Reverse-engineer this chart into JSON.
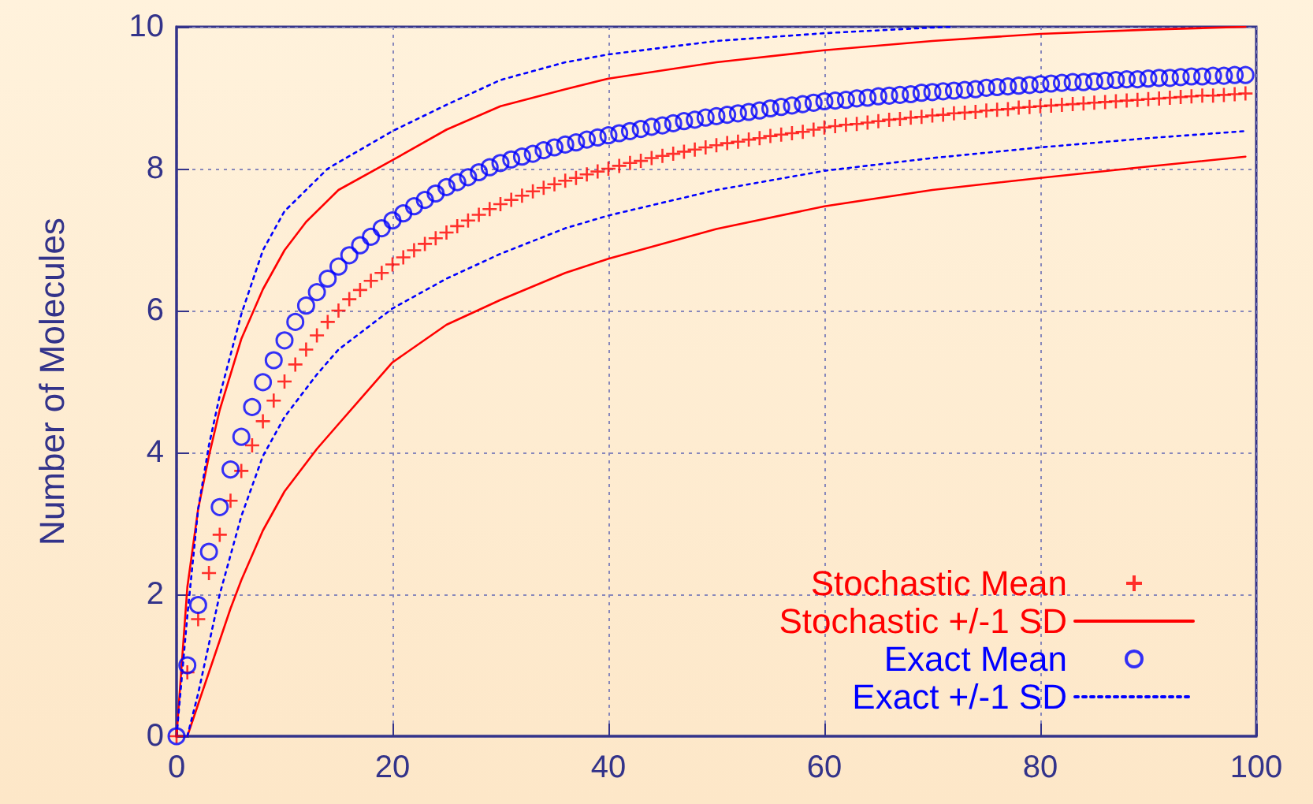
{
  "chart_data": {
    "type": "scatter",
    "ylabel": "Number of Molecules",
    "xlim": [
      0,
      100
    ],
    "xticks": [
      0,
      20,
      40,
      60,
      80,
      100
    ],
    "ylim": [
      0,
      10
    ],
    "yticks": [
      0,
      2,
      4,
      6,
      8,
      10
    ],
    "grid": true,
    "legend": "bottom right",
    "x": [
      0,
      1,
      2,
      3,
      4,
      5,
      6,
      7,
      8,
      9,
      10,
      11,
      12,
      13,
      14,
      15,
      16,
      17,
      18,
      19,
      20,
      21,
      22,
      23,
      24,
      25,
      26,
      27,
      28,
      29,
      30,
      31,
      32,
      33,
      34,
      35,
      36,
      37,
      38,
      39,
      40,
      41,
      42,
      43,
      44,
      45,
      46,
      47,
      48,
      49,
      50,
      51,
      52,
      53,
      54,
      55,
      56,
      57,
      58,
      59,
      60,
      61,
      62,
      63,
      64,
      65,
      66,
      67,
      68,
      69,
      70,
      71,
      72,
      73,
      74,
      75,
      76,
      77,
      78,
      79,
      80,
      81,
      82,
      83,
      84,
      85,
      86,
      87,
      88,
      89,
      90,
      91,
      92,
      93,
      94,
      95,
      96,
      97,
      98,
      99
    ],
    "series": [
      {
        "name": "Stochastic Mean",
        "marker": "cross",
        "color": "#ff0000",
        "values": [
          0,
          0.9,
          1.65,
          2.3,
          2.84,
          3.32,
          3.74,
          4.1,
          4.44,
          4.73,
          5.0,
          5.24,
          5.45,
          5.65,
          5.84,
          6.0,
          6.16,
          6.29,
          6.42,
          6.53,
          6.65,
          6.75,
          6.85,
          6.94,
          7.02,
          7.1,
          7.19,
          7.27,
          7.35,
          7.43,
          7.5,
          7.56,
          7.62,
          7.68,
          7.73,
          7.78,
          7.83,
          7.87,
          7.92,
          7.96,
          8.0,
          8.04,
          8.08,
          8.11,
          8.15,
          8.18,
          8.21,
          8.24,
          8.27,
          8.3,
          8.33,
          8.36,
          8.38,
          8.41,
          8.43,
          8.46,
          8.48,
          8.5,
          8.52,
          8.55,
          8.58,
          8.6,
          8.62,
          8.63,
          8.65,
          8.67,
          8.69,
          8.7,
          8.72,
          8.73,
          8.75,
          8.76,
          8.78,
          8.79,
          8.8,
          8.82,
          8.83,
          8.84,
          8.86,
          8.87,
          8.88,
          8.89,
          8.9,
          8.91,
          8.92,
          8.93,
          8.94,
          8.95,
          8.96,
          8.97,
          8.98,
          8.99,
          9.0,
          9.01,
          9.02,
          9.03,
          9.03,
          9.04,
          9.05,
          9.06
        ]
      },
      {
        "name": "Stochastic +/-1 SD",
        "type": "line",
        "line_style": "solid",
        "color": "#ff0000",
        "x": [
          0,
          1,
          2,
          3,
          4,
          6,
          8,
          10,
          12,
          15,
          20,
          25,
          30,
          36,
          40,
          50,
          60,
          70,
          80,
          90,
          99
        ],
        "values": [
          0,
          2.1,
          3.2,
          3.95,
          4.6,
          5.6,
          6.3,
          6.85,
          7.25,
          7.7,
          8.12,
          8.55,
          8.88,
          9.12,
          9.27,
          9.5,
          9.67,
          9.8,
          9.9,
          9.96,
          10.0
        ]
      },
      {
        "type": "line",
        "line_style": "solid",
        "color": "#ff0000",
        "x": [
          1,
          2,
          3,
          4,
          5,
          6,
          8,
          10,
          13,
          15,
          20,
          25,
          30,
          36,
          40,
          50,
          60,
          70,
          80,
          90,
          99
        ],
        "values": [
          0,
          0.45,
          0.9,
          1.35,
          1.8,
          2.2,
          2.9,
          3.45,
          4.05,
          4.4,
          5.27,
          5.8,
          6.15,
          6.53,
          6.73,
          7.15,
          7.47,
          7.7,
          7.87,
          8.03,
          8.17
        ]
      },
      {
        "name": "Exact Mean",
        "marker": "circle",
        "color": "#0000ff",
        "values": [
          0,
          1.0,
          1.85,
          2.6,
          3.23,
          3.76,
          4.22,
          4.64,
          4.99,
          5.3,
          5.58,
          5.84,
          6.07,
          6.26,
          6.45,
          6.62,
          6.78,
          6.92,
          7.04,
          7.16,
          7.27,
          7.37,
          7.47,
          7.56,
          7.65,
          7.74,
          7.81,
          7.88,
          7.95,
          8.02,
          8.08,
          8.13,
          8.17,
          8.21,
          8.26,
          8.3,
          8.34,
          8.37,
          8.41,
          8.44,
          8.47,
          8.5,
          8.53,
          8.56,
          8.59,
          8.61,
          8.64,
          8.67,
          8.69,
          8.72,
          8.74,
          8.76,
          8.78,
          8.8,
          8.82,
          8.85,
          8.87,
          8.89,
          8.91,
          8.93,
          8.95,
          8.96,
          8.97,
          8.99,
          9.0,
          9.02,
          9.03,
          9.04,
          9.05,
          9.07,
          9.08,
          9.09,
          9.1,
          9.11,
          9.12,
          9.14,
          9.15,
          9.16,
          9.17,
          9.18,
          9.19,
          9.2,
          9.21,
          9.22,
          9.22,
          9.23,
          9.24,
          9.25,
          9.26,
          9.26,
          9.27,
          9.28,
          9.28,
          9.29,
          9.3,
          9.3,
          9.31,
          9.31,
          9.32,
          9.32
        ]
      },
      {
        "name": "Exact +/-1 SD",
        "type": "line",
        "line_style": "dotted",
        "color": "#0000ff",
        "x": [
          0,
          1,
          2,
          3,
          4,
          6,
          8,
          10,
          14,
          20,
          25,
          30,
          36,
          40,
          50,
          60,
          70,
          72
        ],
        "values": [
          0,
          1.7,
          3.2,
          4.1,
          4.8,
          5.95,
          6.85,
          7.4,
          8.0,
          8.53,
          8.9,
          9.25,
          9.5,
          9.61,
          9.8,
          9.91,
          9.99,
          10.0
        ]
      },
      {
        "type": "line",
        "line_style": "dotted",
        "color": "#0000ff",
        "x": [
          1,
          2,
          3,
          4,
          6,
          8,
          10,
          13,
          15,
          20,
          25,
          30,
          36,
          40,
          50,
          60,
          70,
          80,
          90,
          99
        ],
        "values": [
          0,
          0.6,
          1.3,
          2.0,
          3.1,
          3.95,
          4.5,
          5.1,
          5.45,
          6.03,
          6.45,
          6.8,
          7.16,
          7.34,
          7.7,
          7.97,
          8.15,
          8.3,
          8.43,
          8.53
        ]
      }
    ]
  }
}
